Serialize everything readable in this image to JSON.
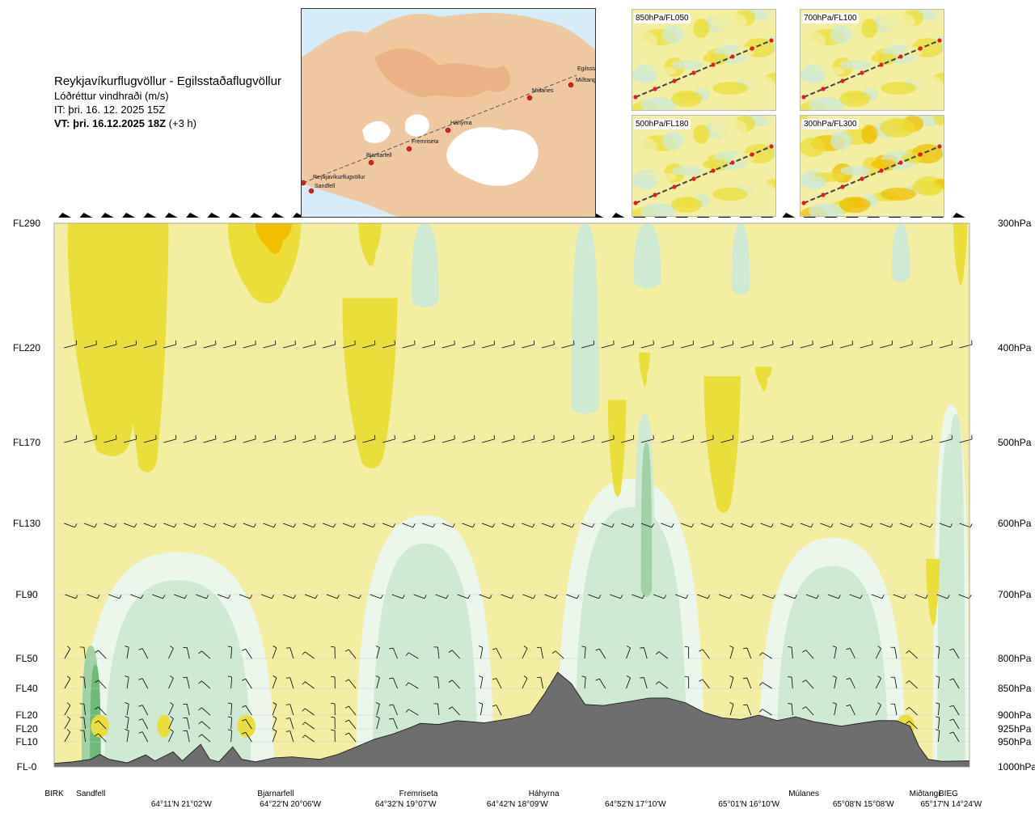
{
  "header": {
    "route": "Reykjavíkurflugvöllur - Egilsstaðaflugvöllur",
    "variable": "Lóðréttur vindhraði (m/s)",
    "issue_time": "IT: þri. 16. 12. 2025 15Z",
    "valid_prefix": "VT: þri. 16.12.2025 18Z",
    "valid_suffix": "(+3 h)"
  },
  "map": {
    "places": [
      "Reykjavíkurflugvöllur",
      "Sandfell",
      "Bjarnarfell",
      "Fremriseta",
      "Háhyrna",
      "Múlanes",
      "Egilsstaðir",
      "Miðtangi"
    ]
  },
  "panels": [
    {
      "label": "850hPa/FL050"
    },
    {
      "label": "700hPa/FL100"
    },
    {
      "label": "500hPa/FL180"
    },
    {
      "label": "300hPa/FL300"
    }
  ],
  "chart_data": {
    "type": "heatmap",
    "title": "Lóðréttur vindhraði (m/s)",
    "left_axis": [
      {
        "label": "FL290",
        "pressure": "300hPa"
      },
      {
        "label": "FL220",
        "pressure": "400hPa"
      },
      {
        "label": "FL170",
        "pressure": "500hPa"
      },
      {
        "label": "FL130",
        "pressure": "600hPa"
      },
      {
        "label": "FL90",
        "pressure": "700hPa"
      },
      {
        "label": "FL50",
        "pressure": "800hPa"
      },
      {
        "label": "FL40",
        "pressure": "850hPa"
      },
      {
        "label": "FL20",
        "pressure": "900hPa"
      },
      {
        "label": "FL20",
        "pressure": "925hPa"
      },
      {
        "label": "FL10",
        "pressure": "950hPa"
      },
      {
        "label": "FL-0",
        "pressure": "1000hPa"
      }
    ],
    "pressure_levels_hpa": [
      300,
      400,
      500,
      600,
      700,
      800,
      850,
      900,
      925,
      950,
      1000
    ],
    "route_points": [
      {
        "name": "BIRK",
        "frac": 0.0
      },
      {
        "name": "Sandfell",
        "frac": 0.04
      },
      {
        "name": "Bjarnarfell",
        "frac": 0.242
      },
      {
        "name": "Fremriseta",
        "frac": 0.398
      },
      {
        "name": "Háhyrna",
        "frac": 0.535
      },
      {
        "name": "Múlanes",
        "frac": 0.819
      },
      {
        "name": "Miðtangi",
        "frac": 0.951
      },
      {
        "name": "BIEG",
        "frac": 0.977
      }
    ],
    "coordinates": [
      {
        "label": "64°11'N 21°02'W",
        "frac": 0.139
      },
      {
        "label": "64°22'N 20°06'W",
        "frac": 0.258
      },
      {
        "label": "64°32'N 19°07'W",
        "frac": 0.384
      },
      {
        "label": "64°42'N 18°09'W",
        "frac": 0.506
      },
      {
        "label": "64°52'N 17°10'W",
        "frac": 0.635
      },
      {
        "label": "65°01'N 16°10'W",
        "frac": 0.759
      },
      {
        "label": "65°08'N 15°08'W",
        "frac": 0.884
      },
      {
        "label": "65°17'N 14°24'W",
        "frac": 0.98
      }
    ],
    "terrain_hpa": [
      [
        0.0,
        993
      ],
      [
        0.02,
        990
      ],
      [
        0.04,
        985
      ],
      [
        0.05,
        975
      ],
      [
        0.06,
        985
      ],
      [
        0.08,
        992
      ],
      [
        0.1,
        976
      ],
      [
        0.11,
        988
      ],
      [
        0.13,
        970
      ],
      [
        0.14,
        988
      ],
      [
        0.16,
        955
      ],
      [
        0.17,
        985
      ],
      [
        0.18,
        990
      ],
      [
        0.195,
        960
      ],
      [
        0.205,
        985
      ],
      [
        0.22,
        990
      ],
      [
        0.24,
        982
      ],
      [
        0.26,
        980
      ],
      [
        0.29,
        985
      ],
      [
        0.31,
        975
      ],
      [
        0.33,
        960
      ],
      [
        0.35,
        945
      ],
      [
        0.37,
        935
      ],
      [
        0.39,
        922
      ],
      [
        0.4,
        915
      ],
      [
        0.42,
        917
      ],
      [
        0.44,
        910
      ],
      [
        0.47,
        914
      ],
      [
        0.5,
        906
      ],
      [
        0.52,
        898
      ],
      [
        0.535,
        862
      ],
      [
        0.55,
        823
      ],
      [
        0.565,
        842
      ],
      [
        0.58,
        880
      ],
      [
        0.6,
        882
      ],
      [
        0.63,
        874
      ],
      [
        0.65,
        868
      ],
      [
        0.67,
        868
      ],
      [
        0.69,
        877
      ],
      [
        0.71,
        895
      ],
      [
        0.73,
        905
      ],
      [
        0.75,
        908
      ],
      [
        0.77,
        900
      ],
      [
        0.79,
        910
      ],
      [
        0.81,
        903
      ],
      [
        0.83,
        912
      ],
      [
        0.86,
        920
      ],
      [
        0.88,
        915
      ],
      [
        0.9,
        910
      ],
      [
        0.92,
        910
      ],
      [
        0.935,
        920
      ],
      [
        0.945,
        960
      ],
      [
        0.955,
        985
      ],
      [
        0.97,
        989
      ],
      [
        1.0,
        988
      ]
    ],
    "color_scale": {
      "strong_updraft": "#f0c000",
      "updraft": "#ecde38",
      "weak_updraft": "#f3eea2",
      "neutral": "#fdfbe2",
      "weak_downdraft": "#eaf7ea",
      "downdraft": "#cfead3",
      "strong_downdraft": "#9fd3a6",
      "very_strong_downdraft": "#6cbb76",
      "terrain": "#6e6e6e"
    },
    "xlim": [
      0,
      1
    ],
    "ylim_hpa": [
      300,
      1000
    ],
    "grid": true
  }
}
